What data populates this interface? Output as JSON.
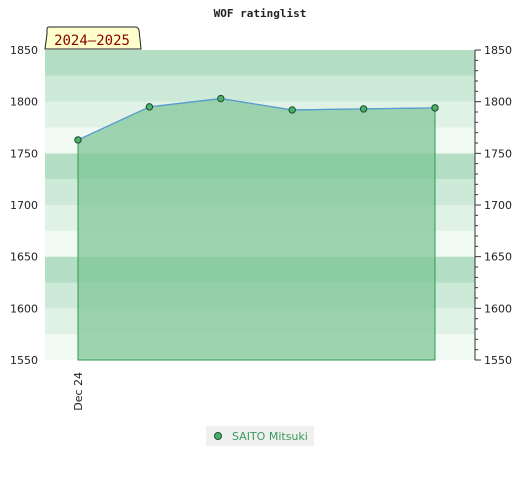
{
  "chart_data": {
    "type": "area",
    "title": "WOF ratinglist",
    "season_label": "2024–2025",
    "x_tick_labels": [
      "Dec 24"
    ],
    "ylim": [
      1550,
      1850
    ],
    "y_ticks": [
      1550,
      1600,
      1650,
      1700,
      1750,
      1800,
      1850
    ],
    "y_axis_sides": [
      "left",
      "right"
    ],
    "series": [
      {
        "name": "SAITO Mitsuki",
        "values": [
          1763,
          1795,
          1803,
          1792,
          1793,
          1794
        ]
      }
    ],
    "legend_position": "bottom-center",
    "colors": {
      "area_fill": "#7dc596",
      "area_stroke": "#2e9a4e",
      "line": "#5b9bd5",
      "marker": "#4caf6e",
      "marker_stroke": "#1d4d2c",
      "band_dark": "#b4dec4",
      "band_mid": "#cde9d7",
      "band_light": "#e0f2e6",
      "band_lightest": "#f1f9f3",
      "season_badge_bg": "#ffffcc",
      "season_text": "#8b0000"
    }
  }
}
